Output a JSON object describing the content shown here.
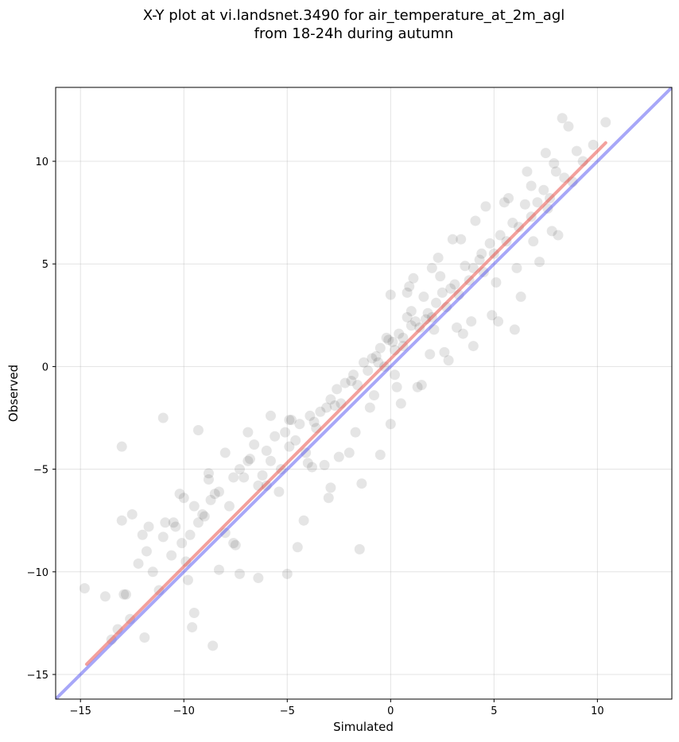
{
  "chart_data": {
    "type": "scatter",
    "title_line1": "X-Y plot at vi.landsnet.3490 for air_temperature_at_2m_agl",
    "title_line2": "from 18-24h during autumn",
    "xlabel": "Simulated",
    "ylabel": "Observed",
    "xlim": [
      -16.2,
      13.6
    ],
    "ylim": [
      -16.2,
      13.6
    ],
    "x_ticks": [
      -15,
      -10,
      -5,
      0,
      5,
      10
    ],
    "y_ticks": [
      -15,
      -10,
      -5,
      0,
      5,
      10
    ],
    "x_tick_labels": [
      "−15",
      "−10",
      "−5",
      "0",
      "5",
      "10"
    ],
    "y_tick_labels": [
      "−15",
      "−10",
      "−5",
      "0",
      "5",
      "10"
    ],
    "grid": true,
    "legend": "none",
    "colors": {
      "points": "#000000",
      "fit_line": "#e8413a",
      "identity_line": "#3b3bf0"
    },
    "series": [
      {
        "kind": "points",
        "x": [
          -14.8,
          -13.8,
          -13.5,
          -13.2,
          -13.0,
          -12.9,
          -12.6,
          -12.5,
          -12.2,
          -12.0,
          -11.8,
          -11.7,
          -11.5,
          -11.2,
          -11.0,
          -10.9,
          -10.6,
          -10.4,
          -10.1,
          -9.9,
          -9.7,
          -9.5,
          -9.3,
          -9.1,
          -9.0,
          -8.8,
          -8.7,
          -8.5,
          -8.3,
          -8.0,
          -7.8,
          -7.6,
          -7.3,
          -7.1,
          -6.9,
          -6.8,
          -6.6,
          -6.4,
          -6.2,
          -6.0,
          -5.8,
          -5.6,
          -5.3,
          -5.1,
          -4.9,
          -4.8,
          -4.6,
          -4.4,
          -4.1,
          -3.9,
          -3.7,
          -3.6,
          -3.4,
          -3.1,
          -2.9,
          -2.7,
          -2.6,
          -2.4,
          -2.2,
          -1.9,
          -1.8,
          -1.6,
          -1.3,
          -1.1,
          -0.9,
          -0.7,
          -0.5,
          -0.3,
          -0.1,
          0.1,
          0.2,
          0.4,
          0.6,
          0.8,
          1.0,
          1.2,
          1.4,
          1.6,
          1.8,
          2.0,
          2.2,
          2.5,
          2.7,
          2.9,
          3.1,
          3.3,
          3.6,
          3.8,
          4.0,
          4.3,
          4.5,
          4.8,
          5.0,
          5.3,
          5.6,
          5.9,
          6.2,
          6.5,
          6.8,
          7.1,
          7.4,
          7.7,
          8.0,
          8.4,
          8.8,
          9.3,
          9.8,
          10.4,
          -12.8,
          -11.0,
          -10.0,
          -9.3,
          -8.8,
          -7.5,
          -6.4,
          -5.0,
          -4.2,
          -3.0,
          -1.5,
          -0.5,
          0.3,
          1.5,
          2.8,
          4.0,
          5.2,
          6.0,
          7.8,
          8.3,
          -13.0,
          -10.5,
          -9.6,
          -8.0,
          -6.9,
          -5.8,
          -4.5,
          -3.2,
          -2.0,
          -1.0,
          0.0,
          0.9,
          2.0,
          3.4,
          4.6,
          5.7,
          6.6,
          7.5,
          8.6,
          -11.9,
          -10.2,
          -9.5,
          -8.6,
          -7.3,
          -5.4,
          -4.0,
          -2.9,
          -1.4,
          0.5,
          1.1,
          2.3,
          3.0,
          4.1,
          5.5,
          6.8,
          7.9,
          9.0,
          -9.8,
          -8.3,
          -7.6,
          -6.0,
          -4.9,
          -3.8,
          -2.5,
          -1.7,
          -0.8,
          0.0,
          1.3,
          2.6,
          3.5,
          4.9,
          6.3,
          7.2,
          8.1,
          0.6,
          1.7,
          2.1,
          -0.2,
          -0.6,
          1.0,
          0.2,
          0.8,
          1.9,
          3.2,
          2.4,
          3.9,
          4.4,
          5.1,
          6.1,
          6.9,
          7.6
        ],
        "y": [
          -10.8,
          -11.2,
          -13.3,
          -12.8,
          -7.5,
          -11.1,
          -12.3,
          -7.2,
          -9.6,
          -8.2,
          -9.0,
          -7.8,
          -10.0,
          -10.9,
          -8.3,
          -7.6,
          -9.2,
          -7.8,
          -8.6,
          -9.5,
          -8.2,
          -6.8,
          -7.6,
          -7.2,
          -7.3,
          -5.5,
          -6.5,
          -6.2,
          -6.1,
          -4.2,
          -6.8,
          -5.4,
          -5.0,
          -5.4,
          -4.6,
          -4.5,
          -3.8,
          -5.8,
          -5.3,
          -4.1,
          -4.6,
          -3.4,
          -5.0,
          -3.2,
          -3.9,
          -2.6,
          -3.6,
          -2.8,
          -4.2,
          -2.4,
          -2.7,
          -3.0,
          -2.2,
          -2.0,
          -1.6,
          -1.9,
          -1.1,
          -1.8,
          -0.8,
          -0.7,
          -0.4,
          -0.9,
          0.2,
          -0.2,
          0.4,
          0.5,
          0.9,
          0.0,
          1.3,
          1.2,
          0.8,
          1.6,
          1.4,
          2.4,
          2.0,
          2.2,
          1.9,
          3.4,
          2.6,
          2.4,
          3.1,
          3.6,
          2.9,
          3.8,
          4.0,
          3.5,
          4.9,
          4.2,
          4.8,
          5.2,
          4.6,
          6.0,
          5.5,
          6.4,
          6.1,
          7.0,
          6.8,
          7.9,
          7.3,
          8.0,
          8.6,
          8.2,
          9.5,
          9.2,
          9.0,
          10.0,
          10.8,
          11.9,
          -11.1,
          -2.5,
          -6.4,
          -3.1,
          -5.2,
          -8.7,
          -10.3,
          -10.1,
          -7.5,
          -6.4,
          -8.9,
          -4.3,
          -1.0,
          -0.9,
          0.3,
          1.0,
          2.2,
          1.8,
          6.6,
          12.1,
          -3.9,
          -7.6,
          -12.7,
          -8.1,
          -3.2,
          -2.4,
          -8.8,
          -4.8,
          -4.2,
          -2.0,
          3.5,
          3.9,
          4.8,
          6.2,
          7.8,
          8.2,
          9.5,
          10.4,
          11.7,
          -13.2,
          -6.2,
          -12.0,
          -13.6,
          -10.1,
          -6.1,
          -4.7,
          -5.9,
          -5.7,
          -1.8,
          4.3,
          5.3,
          6.2,
          7.1,
          8.0,
          8.8,
          9.9,
          10.5,
          -10.4,
          -9.9,
          -8.6,
          -5.8,
          -2.6,
          -4.9,
          -4.4,
          -3.2,
          -1.4,
          -2.8,
          -1.0,
          0.7,
          1.6,
          2.5,
          3.4,
          5.1,
          6.4,
          1.0,
          2.3,
          1.8,
          1.4,
          0.2,
          2.7,
          -0.4,
          3.6,
          0.6,
          1.9,
          4.4,
          2.2,
          5.5,
          4.1,
          4.8,
          6.1,
          7.7
        ]
      },
      {
        "kind": "fit_line",
        "x": [
          -14.7,
          10.4
        ],
        "y": [
          -14.5,
          10.9
        ]
      },
      {
        "kind": "identity_line",
        "x": [
          -16.2,
          13.6
        ],
        "y": [
          -16.2,
          13.6
        ]
      }
    ]
  }
}
